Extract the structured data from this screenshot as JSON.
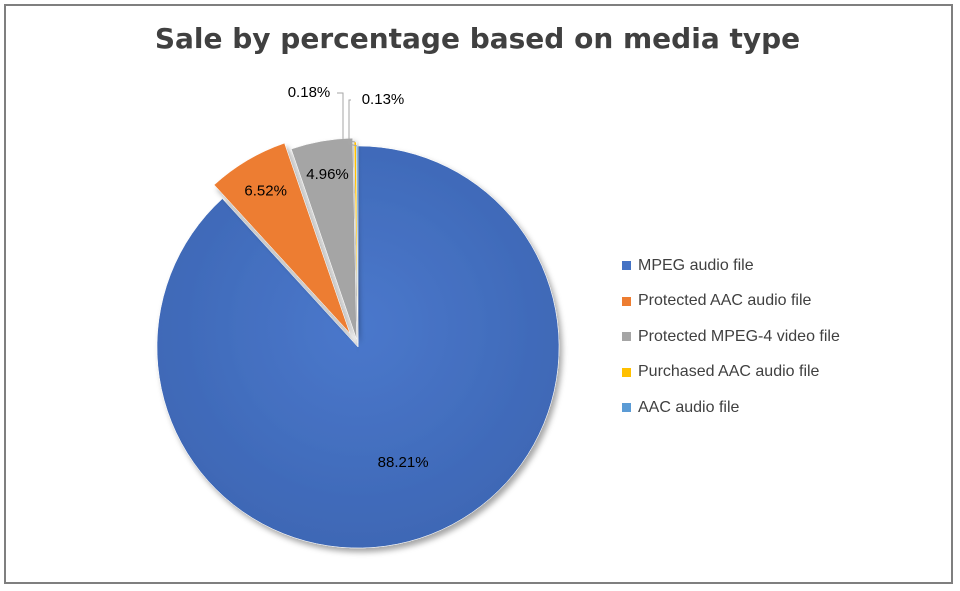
{
  "chart_data": {
    "type": "pie",
    "title": "Sale by percentage based on media type",
    "categories": [
      "MPEG audio file",
      "Protected AAC audio file",
      "Protected MPEG-4 video file",
      "Purchased AAC audio file",
      "AAC audio file"
    ],
    "values": [
      88.21,
      6.52,
      4.96,
      0.18,
      0.13
    ],
    "data_labels": [
      "88.21%",
      "6.52%",
      "4.96%",
      "0.18%",
      "0.13%"
    ],
    "colors": [
      "#4472c4",
      "#ed7d31",
      "#a5a5a5",
      "#ffc000",
      "#5b9bd5"
    ],
    "legend_position": "right"
  }
}
